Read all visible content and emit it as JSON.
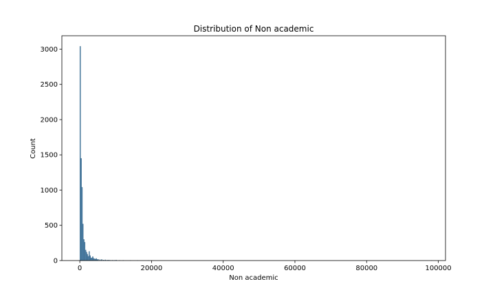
{
  "chart_data": {
    "type": "bar",
    "title": "Distribution of Non academic",
    "xlabel": "Non academic",
    "ylabel": "Count",
    "xlim": [
      -5000,
      102000
    ],
    "ylim": [
      0,
      3190
    ],
    "xticks": [
      0,
      20000,
      40000,
      60000,
      80000,
      100000
    ],
    "yticks": [
      0,
      500,
      1000,
      1500,
      2000,
      2500,
      3000
    ],
    "bin_width": 250,
    "bins": [
      {
        "x": 0,
        "count": 3040
      },
      {
        "x": 250,
        "count": 1450
      },
      {
        "x": 500,
        "count": 1040
      },
      {
        "x": 750,
        "count": 520
      },
      {
        "x": 1000,
        "count": 300
      },
      {
        "x": 1250,
        "count": 260
      },
      {
        "x": 1500,
        "count": 150
      },
      {
        "x": 1750,
        "count": 120
      },
      {
        "x": 2000,
        "count": 90
      },
      {
        "x": 2250,
        "count": 60
      },
      {
        "x": 2500,
        "count": 130
      },
      {
        "x": 2750,
        "count": 70
      },
      {
        "x": 3000,
        "count": 40
      },
      {
        "x": 3250,
        "count": 35
      },
      {
        "x": 3500,
        "count": 55
      },
      {
        "x": 3750,
        "count": 30
      },
      {
        "x": 4000,
        "count": 25
      },
      {
        "x": 4250,
        "count": 20
      },
      {
        "x": 4500,
        "count": 30
      },
      {
        "x": 4750,
        "count": 15
      },
      {
        "x": 5000,
        "count": 18
      },
      {
        "x": 5500,
        "count": 12
      },
      {
        "x": 6000,
        "count": 15
      },
      {
        "x": 6500,
        "count": 8
      },
      {
        "x": 7000,
        "count": 10
      },
      {
        "x": 7500,
        "count": 6
      },
      {
        "x": 8000,
        "count": 7
      },
      {
        "x": 8500,
        "count": 4
      },
      {
        "x": 9000,
        "count": 5
      },
      {
        "x": 9500,
        "count": 4
      },
      {
        "x": 10000,
        "count": 6
      },
      {
        "x": 11000,
        "count": 2
      },
      {
        "x": 12000,
        "count": 2
      },
      {
        "x": 14000,
        "count": 1
      },
      {
        "x": 16000,
        "count": 1
      },
      {
        "x": 19000,
        "count": 1
      },
      {
        "x": 98000,
        "count": 1
      }
    ],
    "colors": {
      "bar": "#4c7fa8",
      "bar_edge": "#35627f",
      "axis": "#000000"
    },
    "grid": false
  }
}
